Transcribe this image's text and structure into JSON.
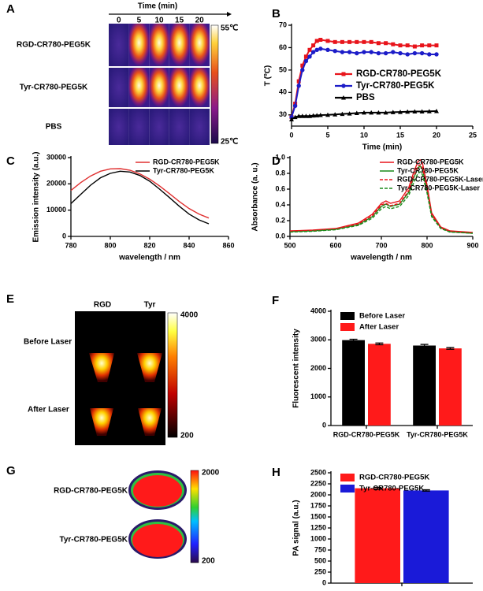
{
  "images": [
    {
      "label": "A",
      "axis_title": "Time (min)",
      "columns": [
        "0",
        "5",
        "10",
        "15",
        "20"
      ],
      "rows": [
        "RGD-CR780-PEG5K",
        "Tyr-CR780-PEG5K",
        "PBS"
      ],
      "scale_max": "55℃",
      "scale_min": "25℃"
    },
    {
      "label": "E",
      "columns": [
        "RGD",
        "Tyr"
      ],
      "rows": [
        "Before Laser",
        "After Laser"
      ],
      "scale_max": "4000",
      "scale_min": "200"
    },
    {
      "label": "G",
      "rows": [
        "RGD-CR780-PEG5K",
        "Tyr-CR780-PEG5K"
      ],
      "scale_max": "2000",
      "scale_min": "200"
    }
  ],
  "chart_data": [
    {
      "type": "line",
      "label": "B",
      "xlabel": "Time (min)",
      "ylabel": "T (ºC)",
      "x": [
        0,
        0.5,
        1,
        1.5,
        2,
        2.5,
        3,
        3.5,
        4,
        5,
        6,
        7,
        8,
        9,
        10,
        11,
        12,
        13,
        14,
        15,
        16,
        17,
        18,
        19,
        20
      ],
      "xlim": [
        0,
        25
      ],
      "xticks": [
        0,
        5,
        10,
        15,
        20,
        25
      ],
      "ylim": [
        25,
        70
      ],
      "yticks": [
        30,
        40,
        50,
        60,
        70
      ],
      "legend": "center-right",
      "series": [
        {
          "name": "RGD-CR780-PEG5K",
          "color": "#e8141b",
          "marker": "square",
          "values": [
            29,
            35,
            45,
            52,
            56,
            59,
            61,
            63,
            63.5,
            63,
            62.5,
            62.5,
            62.5,
            62.5,
            62.5,
            62.5,
            62,
            62,
            61.5,
            61,
            61,
            60.5,
            61,
            61,
            61
          ]
        },
        {
          "name": "Tyr-CR780-PEG5K",
          "color": "#1c1cc8",
          "marker": "circle",
          "values": [
            29,
            34,
            43,
            50,
            54,
            56,
            58,
            59,
            59.5,
            59,
            58.5,
            58,
            58,
            57.5,
            58,
            58,
            57.5,
            57.5,
            58,
            57.5,
            57,
            57.5,
            57.5,
            57,
            57
          ]
        },
        {
          "name": "PBS",
          "color": "#000000",
          "marker": "triangle",
          "values": [
            28,
            29,
            29.5,
            29.5,
            29.5,
            29.5,
            29.7,
            29.8,
            29.9,
            30,
            30.2,
            30.4,
            30.6,
            30.8,
            31,
            31,
            31,
            31,
            31.2,
            31.3,
            31.4,
            31.5,
            31.5,
            31.6,
            31.7
          ]
        }
      ]
    },
    {
      "type": "line",
      "label": "C",
      "xlabel": "wavelength / nm",
      "ylabel": "Emission intensity (a.u.)",
      "x": [
        780,
        785,
        790,
        795,
        800,
        805,
        810,
        815,
        820,
        825,
        830,
        835,
        840,
        845,
        850
      ],
      "xlim": [
        780,
        860
      ],
      "xticks": [
        780,
        800,
        820,
        840,
        860
      ],
      "ylim": [
        0,
        30000
      ],
      "yticks": [
        0,
        10000,
        20000,
        30000
      ],
      "legend": "upper-right",
      "series": [
        {
          "name": "RGD-CR780-PEG5K",
          "color": "#e03030",
          "values": [
            17500,
            20500,
            23000,
            24800,
            25700,
            25800,
            25200,
            23800,
            21800,
            19200,
            16300,
            13300,
            10600,
            8500,
            7000
          ]
        },
        {
          "name": "Tyr-CR780-PEG5K",
          "color": "#000000",
          "values": [
            12500,
            16000,
            19500,
            22300,
            24000,
            24800,
            24500,
            23200,
            21000,
            18000,
            14800,
            11500,
            8500,
            6300,
            4800
          ]
        }
      ]
    },
    {
      "type": "line",
      "label": "D",
      "xlabel": "wavelength / nm",
      "ylabel": "Absorbance (a. u.)",
      "x": [
        500,
        550,
        600,
        650,
        680,
        700,
        710,
        720,
        740,
        760,
        770,
        780,
        785,
        790,
        800,
        810,
        830,
        850,
        900
      ],
      "xlim": [
        500,
        900
      ],
      "xticks": [
        500,
        600,
        700,
        800,
        900
      ],
      "ylim": [
        0,
        1
      ],
      "yticks": [
        {
          "value": 0,
          "label": "0.0"
        },
        0.2,
        0.4,
        0.6,
        0.8,
        {
          "value": 1,
          "label": "1.0"
        }
      ],
      "legend": "upper-right",
      "series": [
        {
          "name": "RGD-CR780-PEG5K",
          "color": "#e8141b",
          "dash": false,
          "values": [
            0.07,
            0.08,
            0.1,
            0.17,
            0.28,
            0.42,
            0.45,
            0.42,
            0.45,
            0.62,
            0.8,
            0.95,
            0.97,
            0.93,
            0.65,
            0.3,
            0.12,
            0.07,
            0.05
          ]
        },
        {
          "name": "Tyr-CR780-PEG5K",
          "color": "#1a8a1a",
          "dash": false,
          "values": [
            0.06,
            0.07,
            0.09,
            0.15,
            0.25,
            0.38,
            0.41,
            0.38,
            0.41,
            0.56,
            0.73,
            0.87,
            0.89,
            0.85,
            0.59,
            0.27,
            0.11,
            0.06,
            0.04
          ]
        },
        {
          "name": "RGD-CR780-PEG5K-Laser",
          "color": "#e8141b",
          "dash": true,
          "values": [
            0.065,
            0.075,
            0.095,
            0.16,
            0.26,
            0.4,
            0.42,
            0.39,
            0.42,
            0.58,
            0.75,
            0.89,
            0.91,
            0.87,
            0.61,
            0.28,
            0.11,
            0.065,
            0.045
          ]
        },
        {
          "name": "Tyr-CR780-PEG5K-Laser",
          "color": "#1a8a1a",
          "dash": true,
          "values": [
            0.055,
            0.065,
            0.085,
            0.14,
            0.23,
            0.35,
            0.38,
            0.35,
            0.38,
            0.52,
            0.67,
            0.8,
            0.82,
            0.78,
            0.55,
            0.25,
            0.1,
            0.055,
            0.04
          ]
        }
      ]
    },
    {
      "type": "bar",
      "label": "F",
      "ylabel": "Fluorescent intensity",
      "categories": [
        "RGD-CR780-PEG5K",
        "Tyr-CR780-PEG5K"
      ],
      "ylim": [
        0,
        4000
      ],
      "yticks": [
        0,
        1000,
        2000,
        3000,
        4000
      ],
      "legend": "upper-left",
      "series": [
        {
          "name": "Before Laser",
          "color": "#000000",
          "values": [
            2990,
            2800
          ],
          "errors": [
            30,
            40
          ]
        },
        {
          "name": "After Laser",
          "color": "#ff1a1a",
          "values": [
            2860,
            2700
          ],
          "errors": [
            30,
            30
          ]
        }
      ]
    },
    {
      "type": "bar",
      "label": "H",
      "ylabel": "PA signal (a.u.)",
      "categories": [
        null
      ],
      "ylim": [
        0,
        2500
      ],
      "yticks": [
        0,
        250,
        500,
        750,
        1000,
        1250,
        1500,
        1750,
        2000,
        2250,
        2500
      ],
      "legend": "upper-left",
      "series": [
        {
          "name": "RGD-CR780-PEG5K",
          "color": "#ff1a1a",
          "values": [
            2150
          ],
          "errors": [
            20
          ]
        },
        {
          "name": "Tyr-CR780-PEG5K",
          "color": "#1a1ad8",
          "values": [
            2100
          ],
          "errors": [
            15
          ]
        }
      ]
    }
  ]
}
